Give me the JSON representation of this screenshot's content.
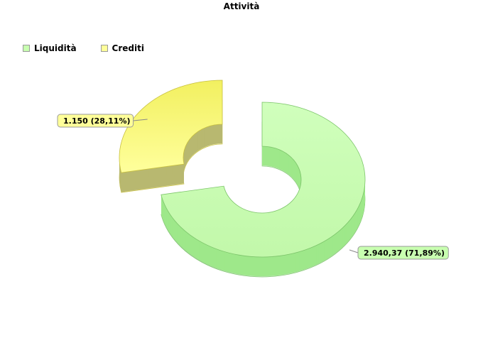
{
  "chart_data": {
    "type": "pie",
    "title": "Attività",
    "legend_position": "top-left",
    "slices": [
      {
        "name": "Liquidità",
        "value": 2940.37,
        "label": "2.940,37 (71,89%)",
        "color": "#c8ffb0",
        "side_color": "#94e680"
      },
      {
        "name": "Crediti",
        "value": 1150,
        "label": "1.150 (28,11%)",
        "color": "#ffff99",
        "side_color": "#e8e860"
      }
    ]
  }
}
